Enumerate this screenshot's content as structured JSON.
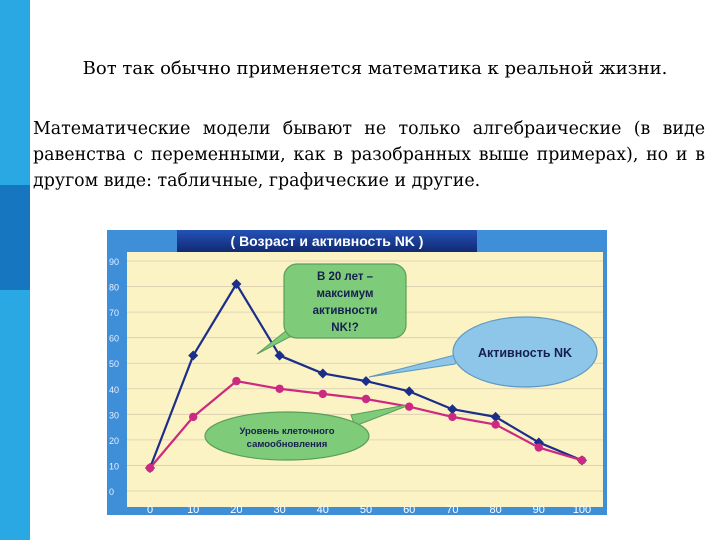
{
  "slide": {
    "heading": "Вот так обычно применяется математика к реальной жизни.",
    "paragraph": "Математические модели бывают не только алгебраические (в виде равенства с переменными, как в разобранных выше примерах), но и в другом виде: табличные, графические и другие."
  },
  "colors": {
    "side_strip": "#29a8e3",
    "side_strip_dark": "#1677c0",
    "chart_background": "#fbf3c4",
    "axis_band": "#3f8fd8",
    "title_band": "#173a8c",
    "series_activity": "#1b2e8a",
    "series_renewal": "#cc2a80",
    "callout_green": "#7ecb7a",
    "callout_blue": "#8ec6ea"
  },
  "chart_data": {
    "type": "line",
    "title": "( Возраст и активность NK )",
    "x": [
      0,
      10,
      20,
      30,
      40,
      50,
      60,
      70,
      80,
      90,
      100
    ],
    "xlim": [
      0,
      100
    ],
    "ylim": [
      0,
      90
    ],
    "y_ticks": [
      0,
      10,
      20,
      30,
      40,
      50,
      60,
      70,
      80,
      90
    ],
    "x_ticks": [
      0,
      10,
      20,
      30,
      40,
      50,
      60,
      70,
      80,
      90,
      100
    ],
    "grid": true,
    "series": [
      {
        "name": "Активность NK",
        "color": "#1b2e8a",
        "values": [
          9,
          53,
          81,
          53,
          46,
          43,
          39,
          32,
          29,
          19,
          12
        ]
      },
      {
        "name": "Уровень клеточного самообновления",
        "color": "#cc2a80",
        "values": [
          9,
          29,
          43,
          40,
          38,
          36,
          33,
          29,
          26,
          17,
          12
        ]
      }
    ],
    "annotations": [
      {
        "label": "callout_peak",
        "lines": [
          "В 20 лет –",
          "максимум",
          "активности",
          "NK!?"
        ]
      },
      {
        "label": "callout_activity",
        "lines": [
          "Активность NK"
        ]
      },
      {
        "label": "callout_renewal",
        "lines": [
          "Уровень клеточного",
          "самообновления"
        ]
      }
    ]
  }
}
